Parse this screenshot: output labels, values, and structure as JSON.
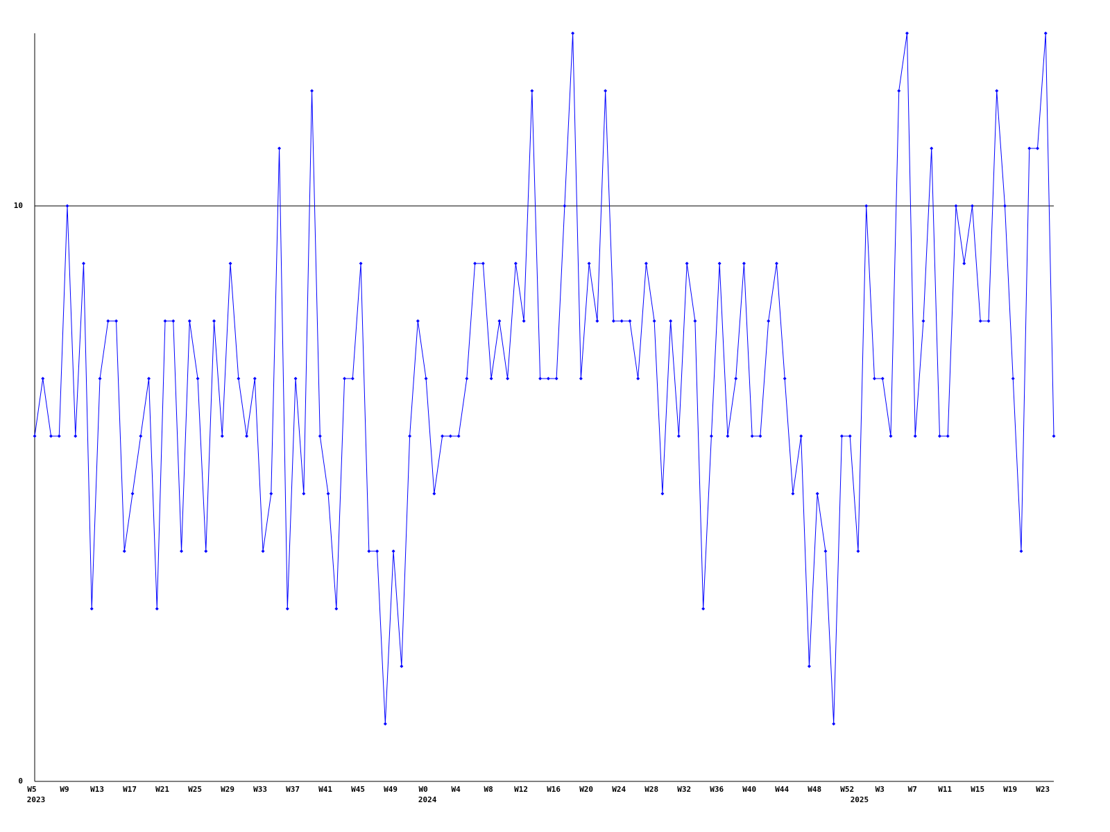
{
  "chart_data": {
    "type": "line",
    "categories": [
      "W5",
      null,
      null,
      null,
      "W9",
      null,
      null,
      null,
      "W13",
      null,
      null,
      null,
      "W17",
      null,
      null,
      null,
      "W21",
      null,
      null,
      null,
      "W25",
      null,
      null,
      null,
      "W29",
      null,
      null,
      null,
      "W33",
      null,
      null,
      null,
      "W37",
      null,
      null,
      null,
      "W41",
      null,
      null,
      null,
      "W45",
      null,
      null,
      null,
      "W49",
      null,
      null,
      null,
      "W0",
      null,
      null,
      null,
      "W4",
      null,
      null,
      null,
      "W8",
      null,
      null,
      null,
      "W12",
      null,
      null,
      null,
      "W16",
      null,
      null,
      null,
      "W20",
      null,
      null,
      null,
      "W24",
      null,
      null,
      null,
      "W28",
      null,
      null,
      null,
      "W32",
      null,
      null,
      null,
      "W36",
      null,
      null,
      null,
      "W40",
      null,
      null,
      null,
      "W44",
      null,
      null,
      null,
      "W48",
      null,
      null,
      null,
      "W52",
      null,
      null,
      null,
      "W3",
      null,
      null,
      null,
      "W7",
      null,
      null,
      null,
      "W11",
      null,
      null,
      null,
      "W15",
      null,
      null,
      null,
      "W19",
      null,
      null,
      null,
      "W23",
      null
    ],
    "category_years": [
      "2023",
      null,
      null,
      null,
      null,
      null,
      null,
      null,
      null,
      null,
      null,
      null,
      null,
      null,
      null,
      null,
      null,
      null,
      null,
      null,
      null,
      null,
      null,
      null,
      null,
      null,
      null,
      null,
      null,
      null,
      null,
      null,
      null,
      null,
      null,
      null,
      null,
      null,
      null,
      null,
      null,
      null,
      null,
      null,
      null,
      null,
      null,
      null,
      "2024",
      null,
      null,
      null,
      null,
      null,
      null,
      null,
      null,
      null,
      null,
      null,
      null,
      null,
      null,
      null,
      null,
      null,
      null,
      null,
      null,
      null,
      null,
      null,
      null,
      null,
      null,
      null,
      null,
      null,
      null,
      null,
      null,
      null,
      null,
      null,
      null,
      null,
      null,
      null,
      null,
      null,
      null,
      null,
      null,
      null,
      null,
      null,
      null,
      null,
      null,
      null,
      null,
      "2025",
      null,
      null,
      null,
      null,
      null,
      null,
      null,
      null,
      null,
      null,
      null,
      null,
      null,
      null,
      null,
      null,
      null,
      null,
      null,
      null,
      null,
      null,
      null,
      null
    ],
    "series": [
      {
        "color": "#0000ff",
        "values": [
          6,
          7,
          6,
          6,
          10,
          6,
          9,
          3,
          7,
          8,
          8,
          4,
          5,
          6,
          7,
          3,
          8,
          8,
          4,
          8,
          7,
          4,
          8,
          6,
          9,
          7,
          6,
          7,
          4,
          5,
          11,
          3,
          7,
          5,
          12,
          6,
          5,
          3,
          7,
          7,
          9,
          4,
          4,
          1,
          4,
          2,
          6,
          8,
          7,
          5,
          6,
          6,
          6,
          7,
          9,
          9,
          7,
          8,
          7,
          9,
          8,
          12,
          7,
          7,
          7,
          10,
          13,
          7,
          9,
          8,
          12,
          8,
          8,
          8,
          7,
          9,
          8,
          5,
          8,
          6,
          9,
          8,
          3,
          6,
          9,
          6,
          7,
          9,
          6,
          6,
          8,
          9,
          7,
          5,
          6,
          2,
          5,
          4,
          1,
          6,
          6,
          4,
          10,
          7,
          7,
          6,
          12,
          13,
          6,
          8,
          11,
          6,
          6,
          10,
          9,
          10,
          8,
          8,
          12,
          10,
          7,
          4,
          11,
          11,
          13,
          6
        ]
      }
    ],
    "ylim": [
      0,
      13
    ],
    "yticks": [
      0,
      10
    ],
    "grid": true
  }
}
